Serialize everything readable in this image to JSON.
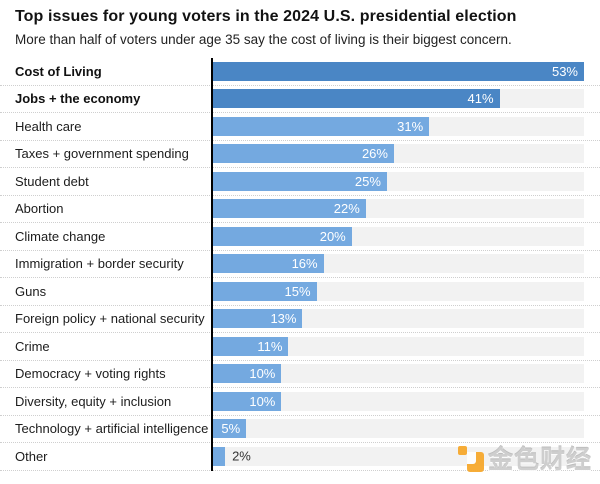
{
  "header": {
    "title": "Top issues for young voters in the 2024 U.S. presidential election",
    "subtitle": "More than half of voters under age 35 say the cost of living is their biggest concern."
  },
  "chart_data": {
    "type": "bar",
    "orientation": "horizontal",
    "title": "Top issues for young voters in the 2024 U.S. presidential election",
    "subtitle": "More than half of voters under age 35 say the cost of living is their biggest concern.",
    "xlabel": "",
    "ylabel": "",
    "xlim": [
      0,
      53
    ],
    "grid": false,
    "value_suffix": "%",
    "categories": [
      "Cost of Living",
      "Jobs + the economy",
      "Health care",
      "Taxes + government spending",
      "Student debt",
      "Abortion",
      "Climate change",
      "Immigration + border security",
      "Guns",
      "Foreign policy + national security",
      "Crime",
      "Democracy + voting rights",
      "Diversity, equity + inclusion",
      "Technology + artificial intelligence",
      "Other"
    ],
    "values": [
      53,
      41,
      31,
      26,
      25,
      22,
      20,
      16,
      15,
      13,
      11,
      10,
      10,
      5,
      2
    ],
    "items": [
      {
        "label": "Cost of Living",
        "value": 53,
        "emphasis": true
      },
      {
        "label": "Jobs + the economy",
        "value": 41,
        "emphasis": true
      },
      {
        "label": "Health care",
        "value": 31,
        "emphasis": false
      },
      {
        "label": "Taxes + government spending",
        "value": 26,
        "emphasis": false
      },
      {
        "label": "Student debt",
        "value": 25,
        "emphasis": false
      },
      {
        "label": "Abortion",
        "value": 22,
        "emphasis": false
      },
      {
        "label": "Climate change",
        "value": 20,
        "emphasis": false
      },
      {
        "label": "Immigration + border security",
        "value": 16,
        "emphasis": false
      },
      {
        "label": "Guns",
        "value": 15,
        "emphasis": false
      },
      {
        "label": "Foreign policy + national security",
        "value": 13,
        "emphasis": false
      },
      {
        "label": "Crime",
        "value": 11,
        "emphasis": false
      },
      {
        "label": "Democracy + voting rights",
        "value": 10,
        "emphasis": false
      },
      {
        "label": "Diversity, equity + inclusion",
        "value": 10,
        "emphasis": false
      },
      {
        "label": "Technology + artificial intelligence",
        "value": 5,
        "emphasis": false
      },
      {
        "label": "Other",
        "value": 2,
        "emphasis": false
      }
    ]
  },
  "colors": {
    "bar_emphasis": "#4a86c5",
    "bar_normal": "#74a9e0",
    "track": "#f2f2f2",
    "axis": "#000000",
    "separator": "#cfcfcf",
    "value_label_inside": "#ffffff",
    "value_label_outside": "#333333",
    "watermark_orange": "#f7a728"
  },
  "watermark": {
    "text": "金色财经",
    "logo": "jinse-logo-icon"
  }
}
